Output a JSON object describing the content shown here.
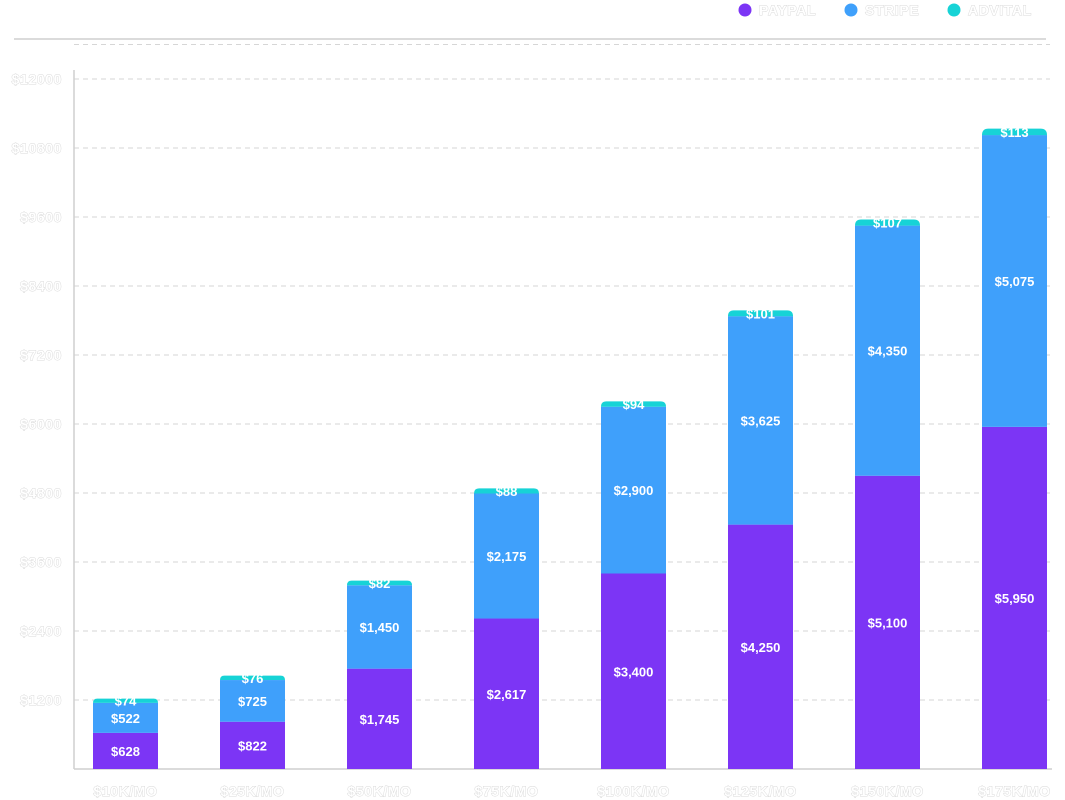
{
  "chart_data": {
    "type": "bar",
    "stacked": true,
    "legend_position": "top-right",
    "grid": true,
    "ylim": [
      0,
      12600
    ],
    "y_ticks": [
      1200,
      2400,
      3600,
      4800,
      6000,
      7200,
      8400,
      9600,
      10800,
      12000
    ],
    "y_tick_labels": [
      "$1200",
      "$2400",
      "$3600",
      "$4800",
      "$6000",
      "$7200",
      "$8400",
      "$9600",
      "$10800",
      "$12000"
    ],
    "categories": [
      "$10K/MO",
      "$25K/MO",
      "$50K/MO",
      "$75K/MO",
      "$100K/MO",
      "$125K/MO",
      "$150K/MO",
      "$175K/MO"
    ],
    "series": [
      {
        "name": "PAYPAL",
        "color": "#7c35f5",
        "values": [
          628,
          822,
          1745,
          2617,
          3400,
          4250,
          5100,
          5950
        ],
        "labels": [
          "$628",
          "$822",
          "$1,745",
          "$2,617",
          "$3,400",
          "$4,250",
          "$5,100",
          "$5,950"
        ]
      },
      {
        "name": "STRIPE",
        "color": "#3fa0fb",
        "values": [
          522,
          725,
          1450,
          2175,
          2900,
          3625,
          4350,
          5075
        ],
        "labels": [
          "$522",
          "$725",
          "$1,450",
          "$2,175",
          "$2,900",
          "$3,625",
          "$4,350",
          "$5,075"
        ]
      },
      {
        "name": "ADVITAL",
        "color": "#17d3d6",
        "values": [
          74,
          76,
          82,
          88,
          94,
          101,
          107,
          113
        ],
        "labels": [
          "$74",
          "$76",
          "$82",
          "$88",
          "$94",
          "$101",
          "$107",
          "$113"
        ]
      }
    ]
  }
}
